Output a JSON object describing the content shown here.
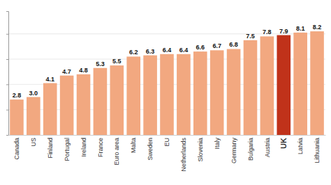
{
  "chart_data": {
    "type": "bar",
    "categories": [
      "Canada",
      "US",
      "Finland",
      "Portugal",
      "Ireland",
      "France",
      "Euro area",
      "Malta",
      "Sweden",
      "EU",
      "Netherlands",
      "Slovenia",
      "Italy",
      "Germany",
      "Bulgaria",
      "Austria",
      "UK",
      "Latvia",
      "Lithuania"
    ],
    "values": [
      2.8,
      3.0,
      4.1,
      4.7,
      4.8,
      5.3,
      5.5,
      6.2,
      6.3,
      6.4,
      6.4,
      6.6,
      6.7,
      6.8,
      7.5,
      7.8,
      7.9,
      8.1,
      8.2
    ],
    "value_labels": [
      "2.8",
      "3.0",
      "4.1",
      "4.7",
      "4.8",
      "5.3",
      "5.5",
      "6.2",
      "6.3",
      "6.4",
      "6.4",
      "6.6",
      "6.7",
      "6.8",
      "7.5",
      "7.8",
      "7.9",
      "8.1",
      "8.2"
    ],
    "colors": [
      "#f2a880",
      "#f2a880",
      "#f2a880",
      "#f2a880",
      "#f2a880",
      "#f2a880",
      "#f2a880",
      "#f2a880",
      "#f2a880",
      "#f2a880",
      "#f2a880",
      "#f2a880",
      "#f2a880",
      "#f2a880",
      "#f2a880",
      "#f2a880",
      "#c0321a",
      "#f2a880",
      "#f2a880"
    ],
    "ylim": [
      0,
      9.8
    ],
    "yticks": [
      2,
      4,
      6,
      8
    ],
    "grid": true,
    "data_labels": true,
    "tick_labels": "x"
  }
}
